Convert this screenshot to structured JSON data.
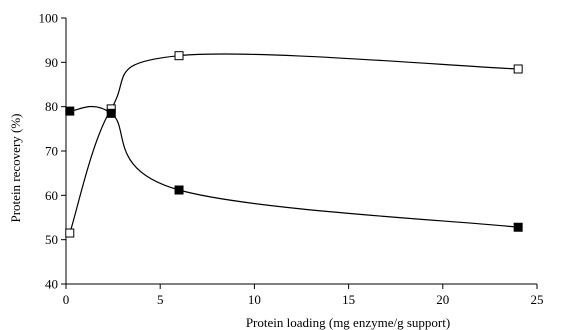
{
  "chart_data": {
    "type": "scatter",
    "title": "",
    "xlabel": "Protein loading (mg enzyme/g support)",
    "ylabel": "Protein recovery (%)",
    "xlim": [
      0,
      25
    ],
    "ylim": [
      40,
      100
    ],
    "xticks": [
      "0",
      "5",
      "10",
      "15",
      "20",
      "25"
    ],
    "yticks": [
      "40",
      "50",
      "60",
      "70",
      "80",
      "90",
      "100"
    ],
    "grid": false,
    "legend": "none",
    "series": [
      {
        "marker": "open-square",
        "color": "#000000",
        "x": [
          0.2,
          2.4,
          6.0,
          24.0
        ],
        "y": [
          51.5,
          79.5,
          91.5,
          88.5
        ]
      },
      {
        "marker": "filled-square",
        "color": "#000000",
        "x": [
          0.2,
          2.4,
          6.0,
          24.0
        ],
        "y": [
          79.0,
          78.5,
          61.2,
          52.8
        ]
      }
    ]
  }
}
